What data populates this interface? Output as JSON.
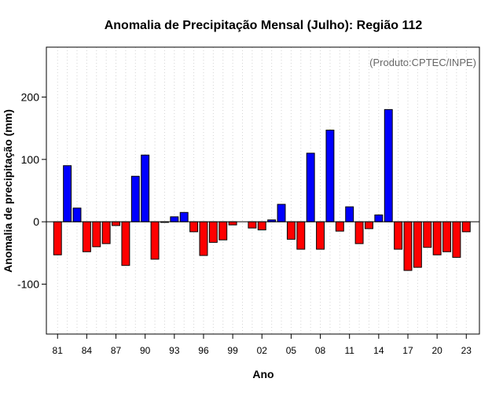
{
  "chart_data": {
    "type": "bar",
    "title": "Anomalia de Precipitação Mensal (Julho): Região 112",
    "xlabel": "Ano",
    "ylabel": "Anomalia de precipitação (mm)",
    "source_note": "(Produto:CPTEC/INPE)",
    "ylim": [
      -180,
      280
    ],
    "yticks": [
      -100,
      0,
      100,
      200
    ],
    "ytick_labels": [
      "-100",
      "0",
      "100",
      "200"
    ],
    "xtick_labels": [
      "81",
      "84",
      "87",
      "90",
      "93",
      "96",
      "99",
      "02",
      "05",
      "08",
      "11",
      "14",
      "17",
      "20",
      "23"
    ],
    "xtick_every": 3,
    "grid": "vertical dotted",
    "colors": {
      "positive": "#0000ff",
      "negative": "#ff0000",
      "zero_line": "#000000",
      "grid": "#d3d3d3"
    },
    "categories": [
      "81",
      "82",
      "83",
      "84",
      "85",
      "86",
      "87",
      "88",
      "89",
      "90",
      "91",
      "92",
      "93",
      "94",
      "95",
      "96",
      "97",
      "98",
      "99",
      "00",
      "01",
      "02",
      "03",
      "04",
      "05",
      "06",
      "07",
      "08",
      "09",
      "10",
      "11",
      "12",
      "13",
      "14",
      "15",
      "16",
      "17",
      "18",
      "19",
      "20",
      "21",
      "22",
      "23"
    ],
    "values": [
      -53,
      90,
      22,
      -48,
      -40,
      -35,
      -6,
      -70,
      73,
      107,
      -60,
      -1,
      8,
      15,
      -16,
      -54,
      -33,
      -29,
      -5,
      0,
      -10,
      -13,
      3,
      28,
      -28,
      -44,
      110,
      -44,
      147,
      -15,
      24,
      -35,
      -11,
      11,
      180,
      -44,
      -78,
      -73,
      -41,
      -53,
      -48,
      -57,
      -16
    ]
  }
}
